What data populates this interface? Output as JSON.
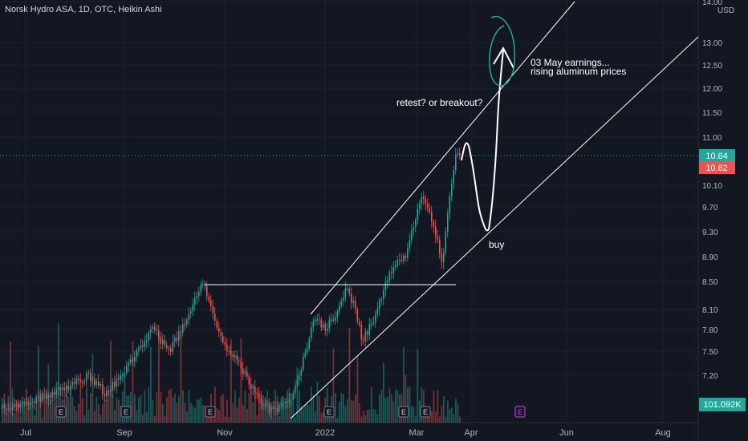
{
  "title": "Norsk Hydro ASA, 1D, OTC, Heikin Ashi",
  "currency": "USD",
  "colors": {
    "background": "#131722",
    "grid": "#1e222d",
    "up": "#26a69a",
    "down": "#ef5350",
    "annotation": "#ffffff",
    "target_circle": "#26a69a",
    "label_up": "#26a69a",
    "label_down": "#ef5350"
  },
  "chart_data": {
    "type": "candlestick",
    "x_ticks": [
      "Jul",
      "Sep",
      "Nov",
      "2022",
      "Mar",
      "Apr",
      "Jun",
      "Aug"
    ],
    "y_ticks": [
      "14.00",
      "13.00",
      "12.50",
      "12.00",
      "11.50",
      "11.00",
      "10.10",
      "9.70",
      "9.30",
      "8.90",
      "8.50",
      "8.10",
      "7.80",
      "7.50",
      "7.20"
    ],
    "grid": true,
    "price_labels": [
      {
        "value": "10.64",
        "color": "up"
      },
      {
        "value": "10.62",
        "color": "down"
      }
    ],
    "volume_label": "101.092K",
    "earnings_markers": [
      "E",
      "E",
      "E",
      "E",
      "E",
      "E",
      "E"
    ],
    "annotations": [
      {
        "text": "03 May earnings...",
        "kind": "text"
      },
      {
        "text": "rising aluminum prices",
        "kind": "text"
      },
      {
        "text": "retest? or breakout?",
        "kind": "text"
      },
      {
        "text": "buy",
        "kind": "text"
      }
    ]
  }
}
